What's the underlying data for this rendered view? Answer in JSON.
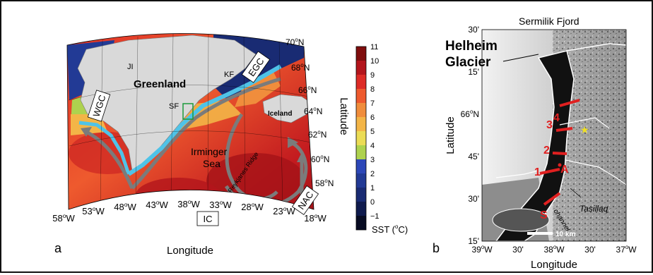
{
  "panel_a": {
    "panel_letter": "a",
    "x_axis_label": "Longitude",
    "lon_ticks": [
      {
        "deg": "58",
        "dir": "W"
      },
      {
        "deg": "53",
        "dir": "W"
      },
      {
        "deg": "48",
        "dir": "W"
      },
      {
        "deg": "43",
        "dir": "W"
      },
      {
        "deg": "38",
        "dir": "W"
      },
      {
        "deg": "33",
        "dir": "W"
      },
      {
        "deg": "28",
        "dir": "W"
      },
      {
        "deg": "23",
        "dir": "W"
      },
      {
        "deg": "18",
        "dir": "W"
      }
    ],
    "lat_axis_label": "Latitude",
    "lat_ticks": [
      {
        "deg": "70",
        "dir": "N"
      },
      {
        "deg": "68",
        "dir": "N"
      },
      {
        "deg": "66",
        "dir": "N"
      },
      {
        "deg": "64",
        "dir": "N"
      },
      {
        "deg": "62",
        "dir": "N"
      },
      {
        "deg": "60",
        "dir": "N"
      },
      {
        "deg": "58",
        "dir": "N"
      }
    ],
    "labels": {
      "greenland": "Greenland",
      "iceland": "Iceland",
      "irminger_sea": "Irminger Sea",
      "reykjanes_ridge": "Reykjanes Ridge",
      "ji": "JI",
      "kf": "KF",
      "sf": "SF"
    },
    "currents": {
      "wgc": "WGC",
      "egc": "EGC",
      "ic": "IC",
      "nac": "NAC"
    },
    "colorbar": {
      "ticks": [
        "11",
        "10",
        "9",
        "8",
        "7",
        "6",
        "5",
        "4",
        "3",
        "2",
        "1",
        "0",
        "−1"
      ],
      "colors": [
        "#7f0d0d",
        "#b3151c",
        "#dd2b26",
        "#ee5a2e",
        "#f08d3c",
        "#f3b547",
        "#ebdc55",
        "#aed24e",
        "#2c47b8",
        "#223a95",
        "#192b73",
        "#0f1a4d",
        "#070b22"
      ],
      "label_prefix": "SST (",
      "label_unit": "C)",
      "label_degree": "o"
    }
  },
  "panel_b": {
    "panel_letter": "b",
    "title": "Sermilik Fjord",
    "glacier_line1": "Helheim",
    "glacier_line2": "Glacier",
    "x_axis_label": "Longitude",
    "lon_ticks": [
      {
        "deg": "39",
        "dir": "W"
      },
      {
        "deg": "",
        "dir": "30'"
      },
      {
        "deg": "38",
        "dir": "W"
      },
      {
        "deg": "",
        "dir": "30'"
      },
      {
        "deg": "37",
        "dir": "W"
      }
    ],
    "y_axis_label": "Latitude",
    "lat_ticks": [
      {
        "deg": "",
        "dir": "30'"
      },
      {
        "deg": "",
        "dir": "15'"
      },
      {
        "deg": "66",
        "dir": "N"
      },
      {
        "deg": "",
        "dir": "45'"
      },
      {
        "deg": "",
        "dir": "30'"
      },
      {
        "deg": "",
        "dir": "15'"
      }
    ],
    "stations": [
      "4",
      "3",
      "2",
      "1",
      "A",
      "S"
    ],
    "channel": "channel",
    "town": "Tasiilaq",
    "scale_bar": "10 km"
  }
}
